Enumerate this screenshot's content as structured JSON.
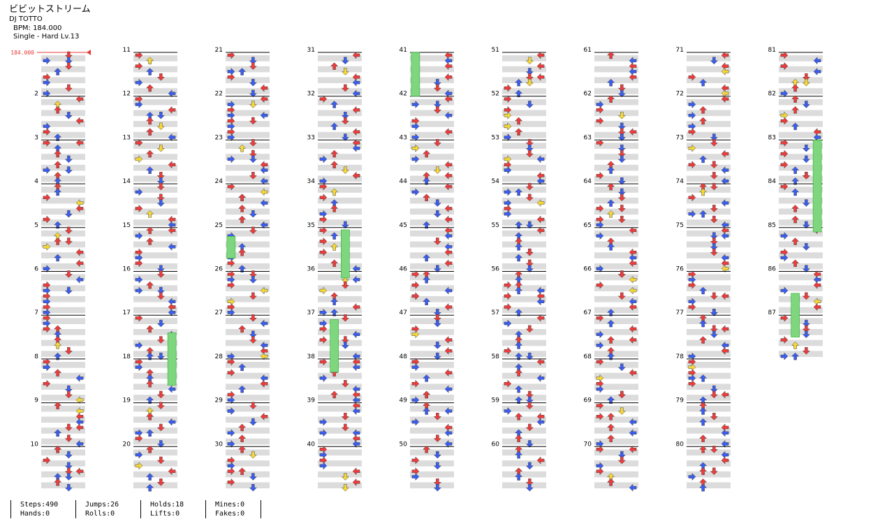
{
  "header": {
    "title": "ビビットストリーム",
    "artist": "DJ TOTTO",
    "bpm_line": "BPM: 184.000",
    "difficulty_line": "Single - Hard  Lv.13"
  },
  "bpm_marker": "184.000",
  "colors": {
    "red_arrow": "#ee3b3b",
    "blue_arrow": "#3a5df0",
    "yellow_arrow": "#f5d838",
    "hold": "#7ed67e",
    "band": "#dcdcdc"
  },
  "measures": {
    "first": 1,
    "last": 87,
    "labelled_numbers": [
      "2",
      "3",
      "4",
      "5",
      "6",
      "7",
      "8",
      "9",
      "10",
      "11",
      "12",
      "13",
      "14",
      "15",
      "16",
      "17",
      "18",
      "19",
      "20",
      "21",
      "22",
      "23",
      "24",
      "25",
      "26",
      "27",
      "28",
      "29",
      "30",
      "31",
      "32",
      "33",
      "34",
      "35",
      "36",
      "37",
      "38",
      "39",
      "40",
      "41",
      "42",
      "43",
      "44",
      "45",
      "46",
      "47",
      "48",
      "49",
      "50",
      "51",
      "52",
      "53",
      "54",
      "55",
      "56",
      "57",
      "58",
      "59",
      "60",
      "61",
      "62",
      "63",
      "64",
      "65",
      "66",
      "67",
      "68",
      "69",
      "70",
      "71",
      "72",
      "73",
      "74",
      "75",
      "76",
      "77",
      "78",
      "79",
      "80",
      "81",
      "82",
      "83",
      "84",
      "85",
      "86",
      "87"
    ]
  },
  "stats": {
    "steps": "Steps:490",
    "hands": "Hands:0",
    "jumps": "Jumps:26",
    "rolls": "Rolls:0",
    "holds": "Holds:18",
    "lifts": "Lifts:0",
    "mines": "Mines:0",
    "fakes": "Fakes:0"
  }
}
